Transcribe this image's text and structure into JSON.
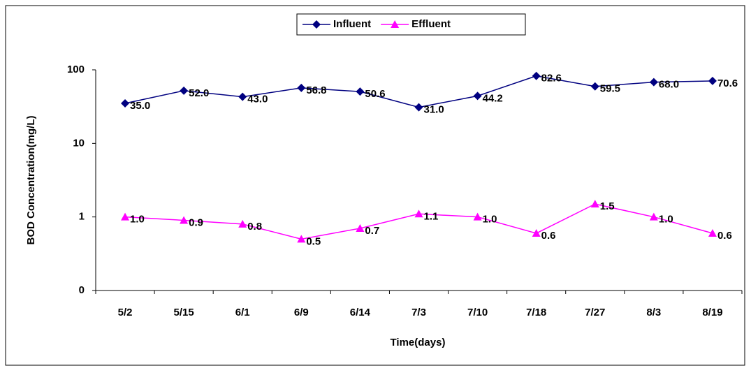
{
  "chart_data": {
    "type": "line",
    "xlabel": "Time(days)",
    "ylabel": "BOD Concentration(mg/L)",
    "categories": [
      "5/2",
      "5/15",
      "6/1",
      "6/9",
      "6/14",
      "7/3",
      "7/10",
      "7/18",
      "7/27",
      "8/3",
      "8/19"
    ],
    "series": [
      {
        "name": "Influent",
        "color": "#000080",
        "marker": "diamond",
        "values": [
          35.0,
          52.0,
          43.0,
          56.8,
          50.6,
          31.0,
          44.2,
          82.6,
          59.5,
          68.0,
          70.6
        ],
        "value_labels": [
          "35.0",
          "52.0",
          "43.0",
          "56.8",
          "50.6",
          "31.0",
          "44.2",
          "82.6",
          "59.5",
          "68.0",
          "70.6"
        ]
      },
      {
        "name": "Effluent",
        "color": "#ff00ff",
        "marker": "triangle",
        "values": [
          1.0,
          0.9,
          0.8,
          0.5,
          0.7,
          1.1,
          1.0,
          0.6,
          1.5,
          1.0,
          0.6
        ],
        "value_labels": [
          "1.0",
          "0.9",
          "0.8",
          "0.5",
          "0.7",
          "1.1",
          "1.0",
          "0.6",
          "1.5",
          "1.0",
          "0.6"
        ]
      }
    ],
    "ylim": [
      0.1,
      100
    ],
    "yticks": [
      {
        "value": 0.1,
        "label": "0"
      },
      1,
      10,
      100
    ],
    "log_scale": true,
    "grid": false,
    "legend": "top"
  }
}
